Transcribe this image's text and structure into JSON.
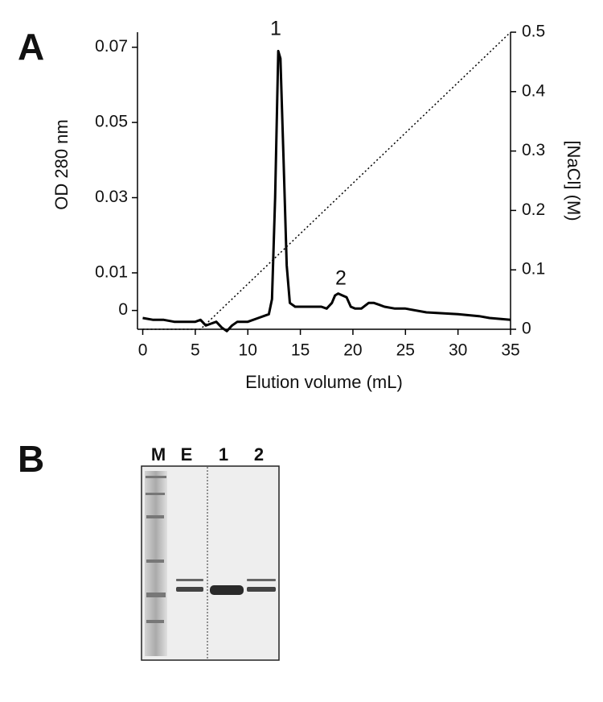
{
  "chart_data": {
    "type": "line",
    "panel": "A",
    "xlabel": "Elution volume (mL)",
    "ylabel": "OD 280 nm",
    "y2label": "[NaCl] (M)",
    "annotations": [
      "1",
      "2"
    ],
    "xlim": [
      -0.5,
      35
    ],
    "xticks": [
      0,
      5,
      10,
      15,
      20,
      25,
      30,
      35
    ],
    "ylim": [
      -0.005,
      0.074
    ],
    "yticks": [
      0,
      0.01,
      0.03,
      0.05,
      0.07
    ],
    "y2lim": [
      0,
      0.5
    ],
    "y2ticks": [
      0,
      0.1,
      0.2,
      0.3,
      0.4,
      0.5
    ],
    "series": [
      {
        "color": "#000000",
        "style": "solid",
        "x": [
          0,
          1,
          2,
          3,
          4,
          5,
          5.5,
          6,
          6.5,
          7,
          7.5,
          8,
          8.5,
          9,
          10,
          11,
          12,
          12.3,
          12.6,
          12.9,
          13.1,
          13.4,
          13.7,
          14,
          14.5,
          15,
          16,
          17,
          17.5,
          18,
          18.3,
          18.6,
          19,
          19.4,
          19.8,
          20.2,
          20.8,
          21.5,
          22,
          22.5,
          23,
          24,
          25,
          27,
          30,
          32,
          33,
          35
        ],
        "values": [
          -0.002,
          -0.0025,
          -0.0025,
          -0.003,
          -0.003,
          -0.003,
          -0.0025,
          -0.004,
          -0.0035,
          -0.003,
          -0.0045,
          -0.0055,
          -0.004,
          -0.003,
          -0.003,
          -0.002,
          -0.001,
          0.003,
          0.03,
          0.069,
          0.067,
          0.04,
          0.012,
          0.002,
          0.001,
          0.001,
          0.001,
          0.001,
          0.0005,
          0.002,
          0.004,
          0.0045,
          0.004,
          0.0035,
          0.001,
          0.0005,
          0.0005,
          0.002,
          0.002,
          0.0015,
          0.001,
          0.0005,
          0.0005,
          -0.0005,
          -0.001,
          -0.0015,
          -0.002,
          -0.0025
        ]
      },
      {
        "color": "#000000",
        "style": "dotted",
        "axis": "y2",
        "x": [
          0,
          5.5,
          35
        ],
        "values": [
          0,
          0,
          0.5
        ]
      }
    ]
  },
  "gel": {
    "panel": "B",
    "lanes": [
      "M",
      "E",
      "1",
      "2"
    ]
  }
}
